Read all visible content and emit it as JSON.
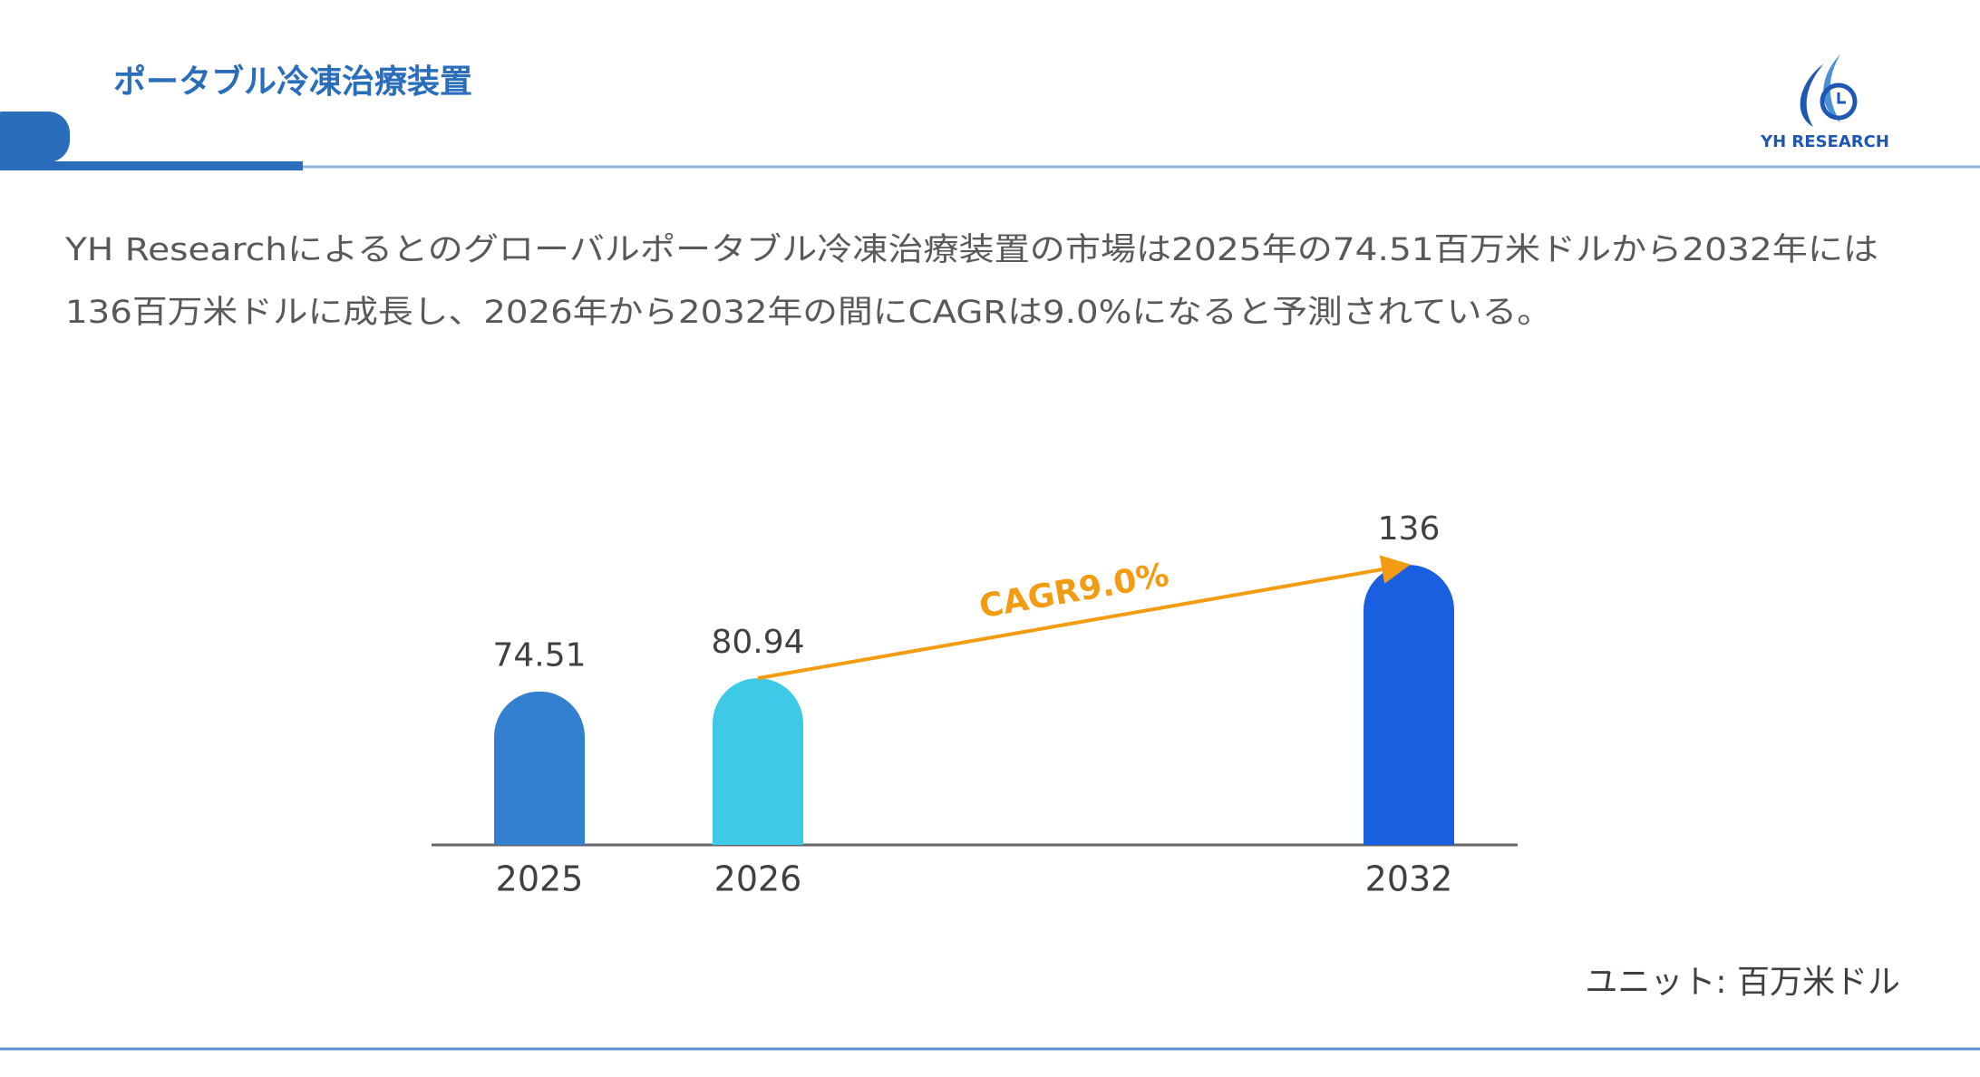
{
  "header": {
    "title": "ポータブル冷凍治療装置",
    "logo": "YH RESEARCH"
  },
  "paragraph": [
    "YH Researchによるとのグローバルポータブル冷凍治療装置の市場は2025年の74.51百万米ドルから2032年には",
    "136百万米ドルに成長し、2026年から2032年の間にCAGRは9.0%になると予測されている。"
  ],
  "chart_data": {
    "type": "bar",
    "categories": [
      "2025",
      "2026",
      "2032"
    ],
    "values": [
      74.51,
      80.94,
      136
    ],
    "colors": [
      "#3380d1",
      "#3ec9e6",
      "#1a5fe0"
    ],
    "annotation": "CAGR9.0%",
    "annotation_color": "#f39c12",
    "unit": "ユニット: 百万米ドル"
  }
}
